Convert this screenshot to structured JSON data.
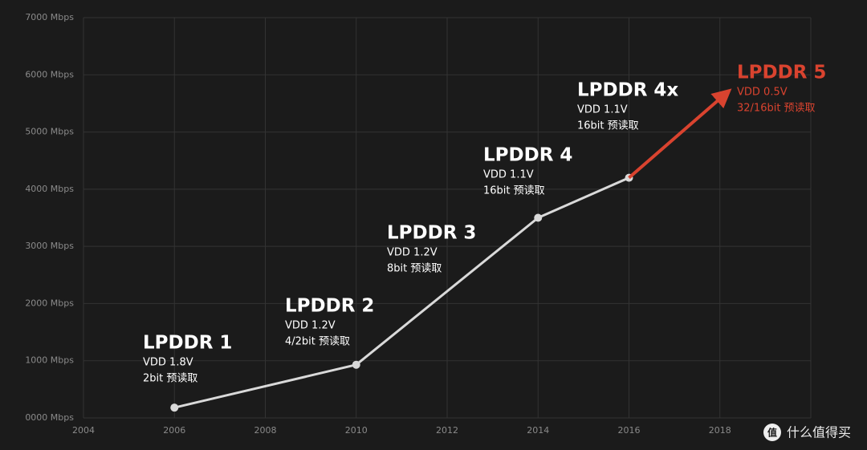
{
  "chart_data": {
    "type": "line",
    "xlim": [
      2004,
      2020
    ],
    "xticks": [
      2004,
      2006,
      2008,
      2010,
      2012,
      2014,
      2016,
      2018
    ],
    "ylim": [
      0,
      7000
    ],
    "yticks": [
      {
        "value": 0,
        "label": "0000 Mbps"
      },
      {
        "value": 1000,
        "label": "1000 Mbps"
      },
      {
        "value": 2000,
        "label": "2000 Mbps"
      },
      {
        "value": 3000,
        "label": "3000 Mbps"
      },
      {
        "value": 4000,
        "label": "4000 Mbps"
      },
      {
        "value": 5000,
        "label": "5000 Mbps"
      },
      {
        "value": 6000,
        "label": "6000 Mbps"
      },
      {
        "value": 7000,
        "label": "7000 Mbps"
      }
    ],
    "grid": true,
    "series": [
      {
        "color": "#d9d9d9",
        "x": [
          2006,
          2010,
          2014,
          2016
        ],
        "values": [
          180,
          930,
          3500,
          4200
        ],
        "markers": true
      },
      {
        "color": "#d9432f",
        "x": [
          2016,
          2018.1
        ],
        "values": [
          4200,
          5650
        ],
        "arrow": true
      }
    ],
    "annotations": [
      {
        "title": "LPDDR 1",
        "lines": [
          "VDD 1.8V",
          "2bit 预读取"
        ],
        "color": "#ffffff"
      },
      {
        "title": "LPDDR 2",
        "lines": [
          "VDD 1.2V",
          "4/2bit 预读取"
        ],
        "color": "#ffffff"
      },
      {
        "title": "LPDDR 3",
        "lines": [
          "VDD 1.2V",
          "8bit 预读取"
        ],
        "color": "#ffffff"
      },
      {
        "title": "LPDDR 4",
        "lines": [
          "VDD 1.1V",
          "16bit 预读取"
        ],
        "color": "#ffffff"
      },
      {
        "title": "LPDDR 4x",
        "lines": [
          "VDD 1.1V",
          "16bit 预读取"
        ],
        "color": "#ffffff"
      },
      {
        "title": "LPDDR 5",
        "lines": [
          "VDD 0.5V",
          "32/16bit 预读取"
        ],
        "color": "#d9432f"
      }
    ],
    "watermark": {
      "icon": "值",
      "text": "什么值得买"
    }
  }
}
